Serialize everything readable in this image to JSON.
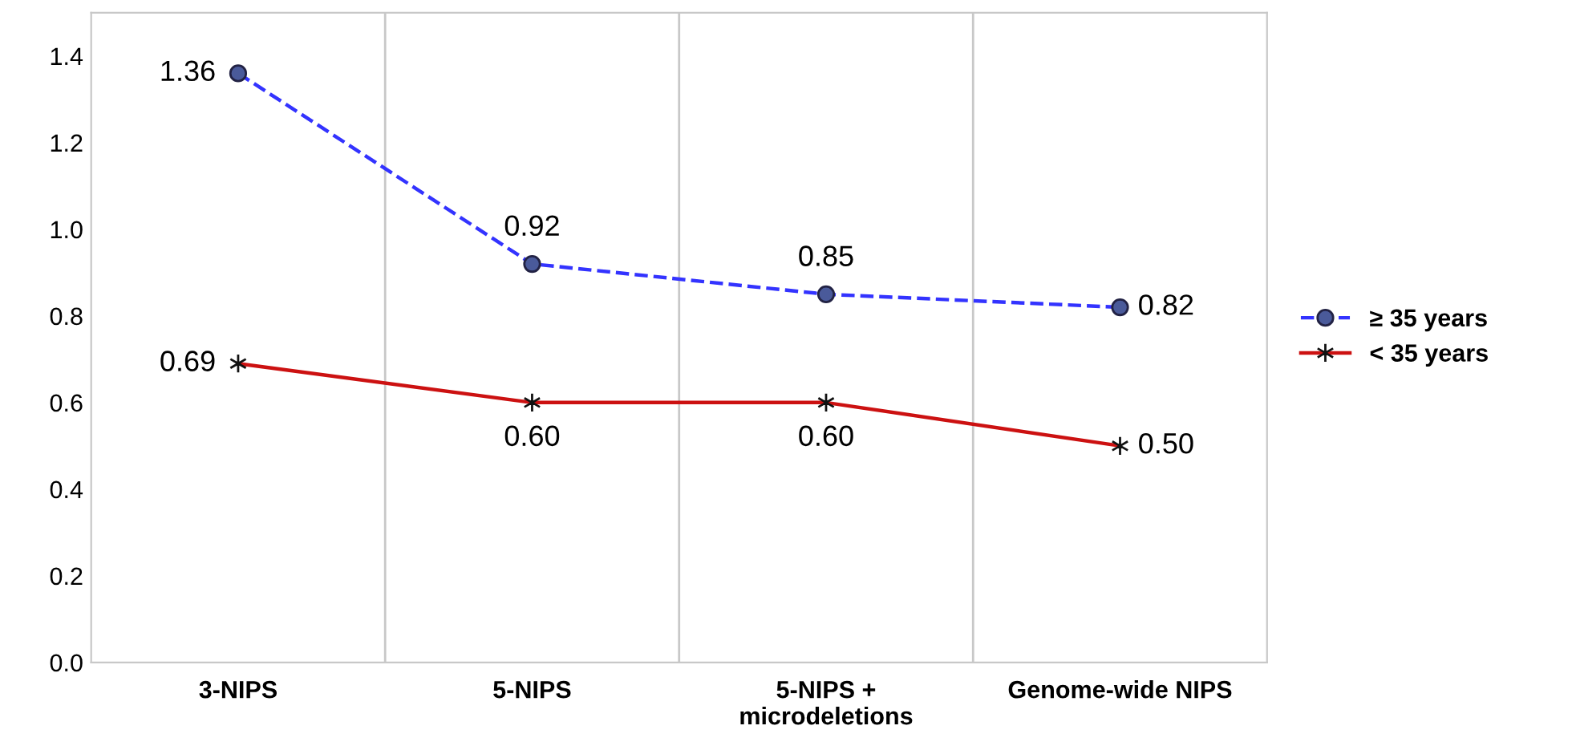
{
  "chart_data": {
    "type": "line",
    "categories": [
      "3-NIPS",
      "5-NIPS",
      "5-NIPS +\nmicrodeletions",
      "Genome-wide NIPS"
    ],
    "series": [
      {
        "name": "≥ 35 years",
        "color": "#3333ff",
        "marker": "circle",
        "line_style": "dashed",
        "values": [
          1.36,
          0.92,
          0.85,
          0.82
        ],
        "value_labels": [
          "1.36",
          "0.92",
          "0.85",
          "0.82"
        ]
      },
      {
        "name": "< 35 years",
        "color": "#cc1111",
        "marker": "cross",
        "line_style": "solid",
        "values": [
          0.69,
          0.6,
          0.6,
          0.5
        ],
        "value_labels": [
          "0.69",
          "0.60",
          "0.60",
          "0.50"
        ]
      }
    ],
    "ylim": [
      0,
      1.5
    ],
    "yticks": [
      {
        "value": 0,
        "label": "0.0"
      },
      0.2,
      0.4,
      0.6,
      0.8,
      {
        "value": 1,
        "label": "1.0"
      },
      1.2,
      1.4
    ],
    "grid": "x",
    "legend": "right"
  }
}
